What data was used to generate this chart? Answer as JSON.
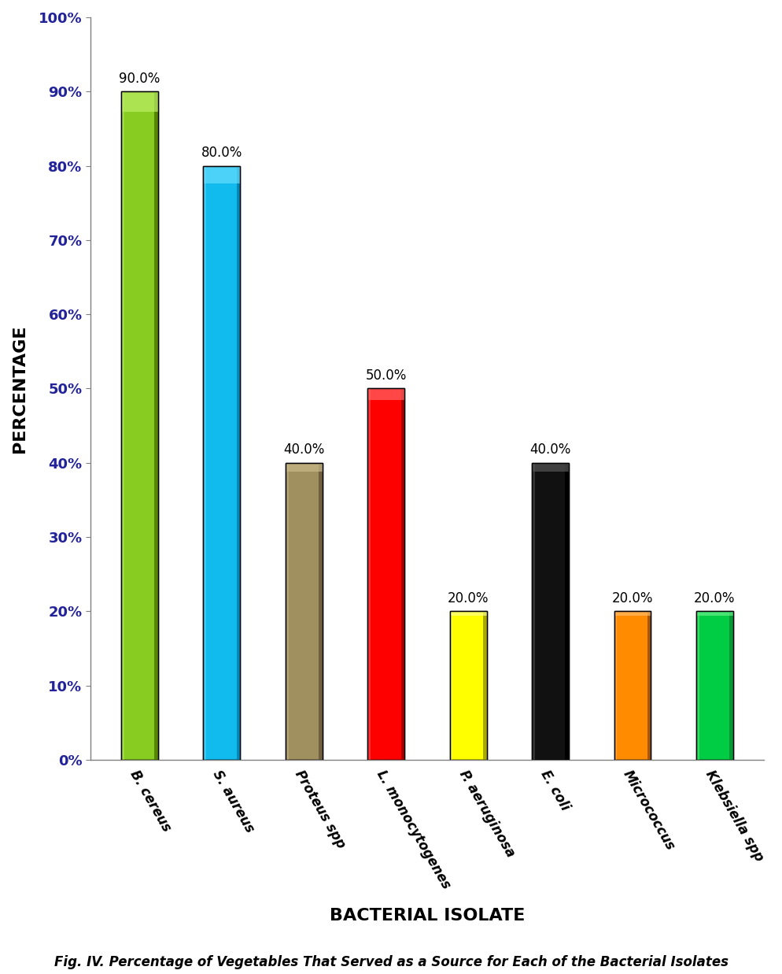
{
  "categories": [
    "B. cereus",
    "S. aureus",
    "Proteus spp",
    "L. monocytogenes",
    "P. aeruginosa",
    "E. coli",
    "Micrococcus",
    "Klebsiella spp"
  ],
  "values": [
    90.0,
    80.0,
    40.0,
    50.0,
    20.0,
    40.0,
    20.0,
    20.0
  ],
  "bar_colors": [
    "#88CC22",
    "#11BBEE",
    "#A09060",
    "#FF0000",
    "#FFFF00",
    "#111111",
    "#FF8C00",
    "#00CC44"
  ],
  "bar_highlight_colors": [
    "#BBEE66",
    "#66DDFF",
    "#C8B888",
    "#FF6666",
    "#FFFF88",
    "#555555",
    "#FFBB66",
    "#66EE88"
  ],
  "bar_shadow_colors": [
    "#558800",
    "#0088BB",
    "#706040",
    "#AA0000",
    "#AAAA00",
    "#000000",
    "#AA5500",
    "#009933"
  ],
  "ylabel": "PERCENTAGE",
  "xlabel": "BACTERIAL ISOLATE",
  "caption": "Fig. IV. Percentage of Vegetables That Served as a Source for Each of the Bacterial Isolates",
  "ylim": [
    0,
    100
  ],
  "yticks": [
    0,
    10,
    20,
    30,
    40,
    50,
    60,
    70,
    80,
    90,
    100
  ],
  "ytick_labels": [
    "0%",
    "10%",
    "20%",
    "30%",
    "40%",
    "50%",
    "60%",
    "70%",
    "80%",
    "90%",
    "100%"
  ],
  "bar_width": 0.45,
  "label_fontsize": 12,
  "tick_fontsize": 13,
  "axis_label_fontsize": 16,
  "caption_fontsize": 12,
  "value_label_fontsize": 12
}
